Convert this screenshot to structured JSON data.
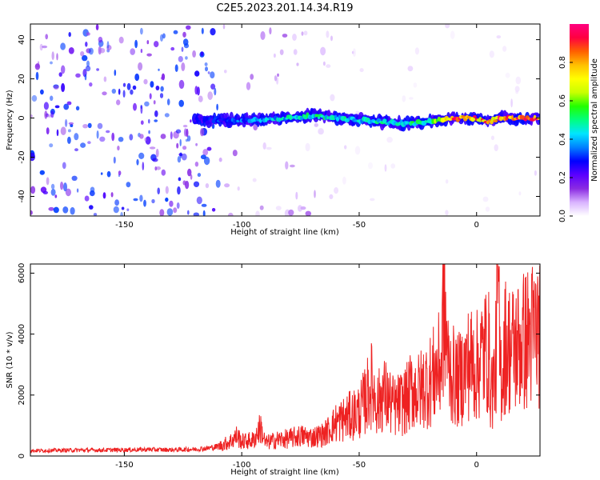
{
  "title": "C2E5.2023.201.14.34.R19",
  "chart_data": [
    {
      "type": "heatmap",
      "xlabel": "Height of straight line (km)",
      "ylabel": "Frequency (Hz)",
      "xlim": [
        -190,
        27
      ],
      "ylim": [
        -50,
        48
      ],
      "xticks": [
        -150,
        -100,
        -50,
        0
      ],
      "yticks": [
        -40,
        -20,
        0,
        20,
        40
      ],
      "grid": false,
      "colorbar": {
        "label": "Normalized spectral amplitude",
        "range": [
          0.0,
          1.0
        ],
        "ticks": [
          0.0,
          0.2,
          0.4,
          0.6,
          0.8
        ],
        "colors": [
          "#ffffff",
          "#d9b3ff",
          "#8a2be2",
          "#5b00ff",
          "#0000ff",
          "#0080ff",
          "#00e5ff",
          "#00ff80",
          "#22ff00",
          "#c8ff00",
          "#ffff00",
          "#ffc000",
          "#ff6000",
          "#ff0040",
          "#ff0080"
        ]
      },
      "noise_regions": [
        {
          "x_range": [
            -190,
            -110
          ],
          "freq_range": [
            -50,
            48
          ],
          "amplitude": 0.15
        },
        {
          "x_range": [
            -110,
            -60
          ],
          "freq_range": [
            -50,
            48
          ],
          "amplitude": 0.05
        },
        {
          "x_range": [
            -60,
            27
          ],
          "freq_range": [
            -50,
            48
          ],
          "amplitude": 0.02
        }
      ],
      "signal_band": [
        {
          "x": -120,
          "freq": -1,
          "amplitude": 0.25
        },
        {
          "x": -110,
          "freq": -1,
          "amplitude": 0.3
        },
        {
          "x": -100,
          "freq": -1,
          "amplitude": 0.35
        },
        {
          "x": -90,
          "freq": -1,
          "amplitude": 0.4
        },
        {
          "x": -80,
          "freq": 0,
          "amplitude": 0.45
        },
        {
          "x": -70,
          "freq": 1,
          "amplitude": 0.5
        },
        {
          "x": -60,
          "freq": 0,
          "amplitude": 0.45
        },
        {
          "x": -50,
          "freq": -1,
          "amplitude": 0.45
        },
        {
          "x": -40,
          "freq": -2,
          "amplitude": 0.45
        },
        {
          "x": -30,
          "freq": -3,
          "amplitude": 0.5
        },
        {
          "x": -20,
          "freq": -2,
          "amplitude": 0.55
        },
        {
          "x": -10,
          "freq": 0,
          "amplitude": 0.85
        },
        {
          "x": 0,
          "freq": 0,
          "amplitude": 0.85
        },
        {
          "x": 5,
          "freq": -2,
          "amplitude": 0.8
        },
        {
          "x": 10,
          "freq": 0,
          "amplitude": 0.9
        },
        {
          "x": 20,
          "freq": 0,
          "amplitude": 0.9
        },
        {
          "x": 27,
          "freq": 0,
          "amplitude": 0.9
        }
      ]
    },
    {
      "type": "line",
      "xlabel": "Height of straight line (km)",
      "ylabel": "SNR (10 * v/v)",
      "xlim": [
        -190,
        27
      ],
      "ylim": [
        0,
        6300
      ],
      "xticks": [
        -150,
        -100,
        -50,
        0
      ],
      "yticks": [
        0,
        2000,
        4000,
        6000
      ],
      "grid": false,
      "color": "#ee2222",
      "series": [
        {
          "x": [
            -190,
            -180,
            -170,
            -160,
            -150,
            -140,
            -130,
            -120,
            -115,
            -110,
            -105,
            -102,
            -100,
            -95,
            -92,
            -90,
            -85,
            -80,
            -75,
            -70,
            -65,
            -60,
            -55,
            -50,
            -47,
            -45,
            -42,
            -40,
            -35,
            -30,
            -27,
            -25,
            -22,
            -20,
            -15,
            -14,
            -12,
            -10,
            -8,
            -5,
            -3,
            0,
            2,
            5,
            6,
            8,
            9,
            10,
            11,
            12,
            15,
            20,
            25,
            27
          ],
          "y": [
            180,
            190,
            200,
            200,
            210,
            220,
            210,
            230,
            260,
            320,
            500,
            700,
            500,
            550,
            1000,
            450,
            560,
            600,
            700,
            650,
            750,
            1150,
            1350,
            1550,
            2000,
            2500,
            1800,
            2200,
            1700,
            1950,
            2400,
            2200,
            2500,
            2600,
            3200,
            5500,
            3100,
            2800,
            2600,
            3000,
            3300,
            3100,
            3500,
            3800,
            2300,
            2800,
            6300,
            3000,
            2900,
            3900,
            3700,
            4000,
            4300,
            4450
          ]
        }
      ]
    }
  ]
}
